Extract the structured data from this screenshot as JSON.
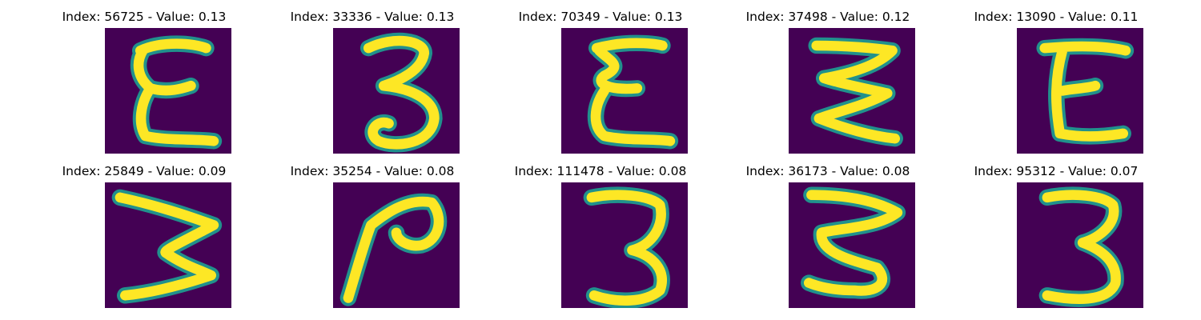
{
  "panels": [
    {
      "index": 56725,
      "value": "0.13",
      "glyph": "E",
      "caption": "Index: 56725 - Value: 0.13"
    },
    {
      "index": 33336,
      "value": "0.13",
      "glyph": "3",
      "caption": "Index: 33336 - Value: 0.13"
    },
    {
      "index": 70349,
      "value": "0.13",
      "glyph": "E",
      "caption": "Index: 70349 - Value: 0.13"
    },
    {
      "index": 37498,
      "value": "0.12",
      "glyph": "E",
      "caption": "Index: 37498 - Value: 0.12"
    },
    {
      "index": 13090,
      "value": "0.11",
      "glyph": "E",
      "caption": "Index: 13090 - Value: 0.11"
    },
    {
      "index": 25849,
      "value": "0.09",
      "glyph": "3",
      "caption": "Index: 25849 - Value: 0.09"
    },
    {
      "index": 35254,
      "value": "0.08",
      "glyph": "2",
      "caption": "Index: 35254 - Value: 0.08"
    },
    {
      "index": 111478,
      "value": "0.08",
      "glyph": "3",
      "caption": "Index: 111478 - Value: 0.08"
    },
    {
      "index": 36173,
      "value": "0.08",
      "glyph": "3",
      "caption": "Index: 36173 - Value: 0.08"
    },
    {
      "index": 95312,
      "value": "0.07",
      "glyph": "3",
      "caption": "Index: 95312 - Value: 0.07"
    }
  ],
  "colors": {
    "background": "#440154",
    "stroke": "#fde725",
    "edge": "#21918c"
  }
}
